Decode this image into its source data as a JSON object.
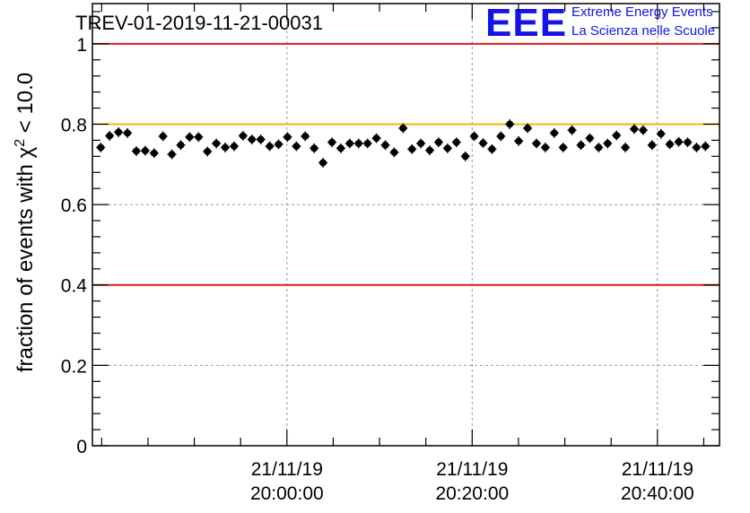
{
  "title": "TREV-01-2019-11-21-00031",
  "logo": {
    "acronym": "EEE",
    "line1": "Extreme Energy Events",
    "line2": "La Scienza nelle Scuole",
    "color": "#1414e6"
  },
  "chart_data": {
    "type": "scatter",
    "title": "TREV-01-2019-11-21-00031",
    "ylabel_prefix": "fraction of events with ",
    "ylabel_symbol": "χ",
    "ylabel_sup": "2",
    "ylabel_suffix": " < 10.0",
    "xlabel": "",
    "xunit": "minutes after 19:40:00 on 21/11/19",
    "xlim": [
      -1.0,
      66.7
    ],
    "ylim": [
      0,
      1.1
    ],
    "yticks": [
      {
        "value": 0,
        "label": "0"
      },
      {
        "value": 0.2,
        "label": "0.2"
      },
      {
        "value": 0.4,
        "label": "0.4"
      },
      {
        "value": 0.6,
        "label": "0.6"
      },
      {
        "value": 0.8,
        "label": "0.8"
      },
      {
        "value": 1.0,
        "label": "1"
      }
    ],
    "xticks": [
      {
        "value": 20,
        "date": "21/11/19",
        "time": "20:00:00"
      },
      {
        "value": 40,
        "date": "21/11/19",
        "time": "20:20:00"
      },
      {
        "value": 60,
        "date": "21/11/19",
        "time": "20:40:00"
      }
    ],
    "grid": true,
    "reference_lines": [
      {
        "value": 1.0,
        "color": "#e11a1a"
      },
      {
        "value": 0.8,
        "color": "#f2b705"
      },
      {
        "value": 0.4,
        "color": "#e11a1a"
      }
    ],
    "marker_color": "#000000",
    "x_step": 0.96,
    "x_start": -0.1,
    "y_error": 0.012,
    "values": [
      0.742,
      0.771,
      0.78,
      0.778,
      0.733,
      0.734,
      0.728,
      0.77,
      0.725,
      0.748,
      0.768,
      0.768,
      0.732,
      0.752,
      0.742,
      0.745,
      0.771,
      0.762,
      0.762,
      0.745,
      0.75,
      0.768,
      0.745,
      0.77,
      0.74,
      0.704,
      0.755,
      0.74,
      0.752,
      0.752,
      0.752,
      0.765,
      0.748,
      0.73,
      0.79,
      0.738,
      0.752,
      0.735,
      0.755,
      0.74,
      0.755,
      0.72,
      0.77,
      0.753,
      0.738,
      0.77,
      0.8,
      0.758,
      0.79,
      0.752,
      0.742,
      0.778,
      0.742,
      0.785,
      0.748,
      0.765,
      0.742,
      0.752,
      0.772,
      0.742,
      0.788,
      0.785,
      0.748,
      0.776,
      0.75,
      0.756,
      0.755,
      0.742,
      0.745
    ]
  }
}
